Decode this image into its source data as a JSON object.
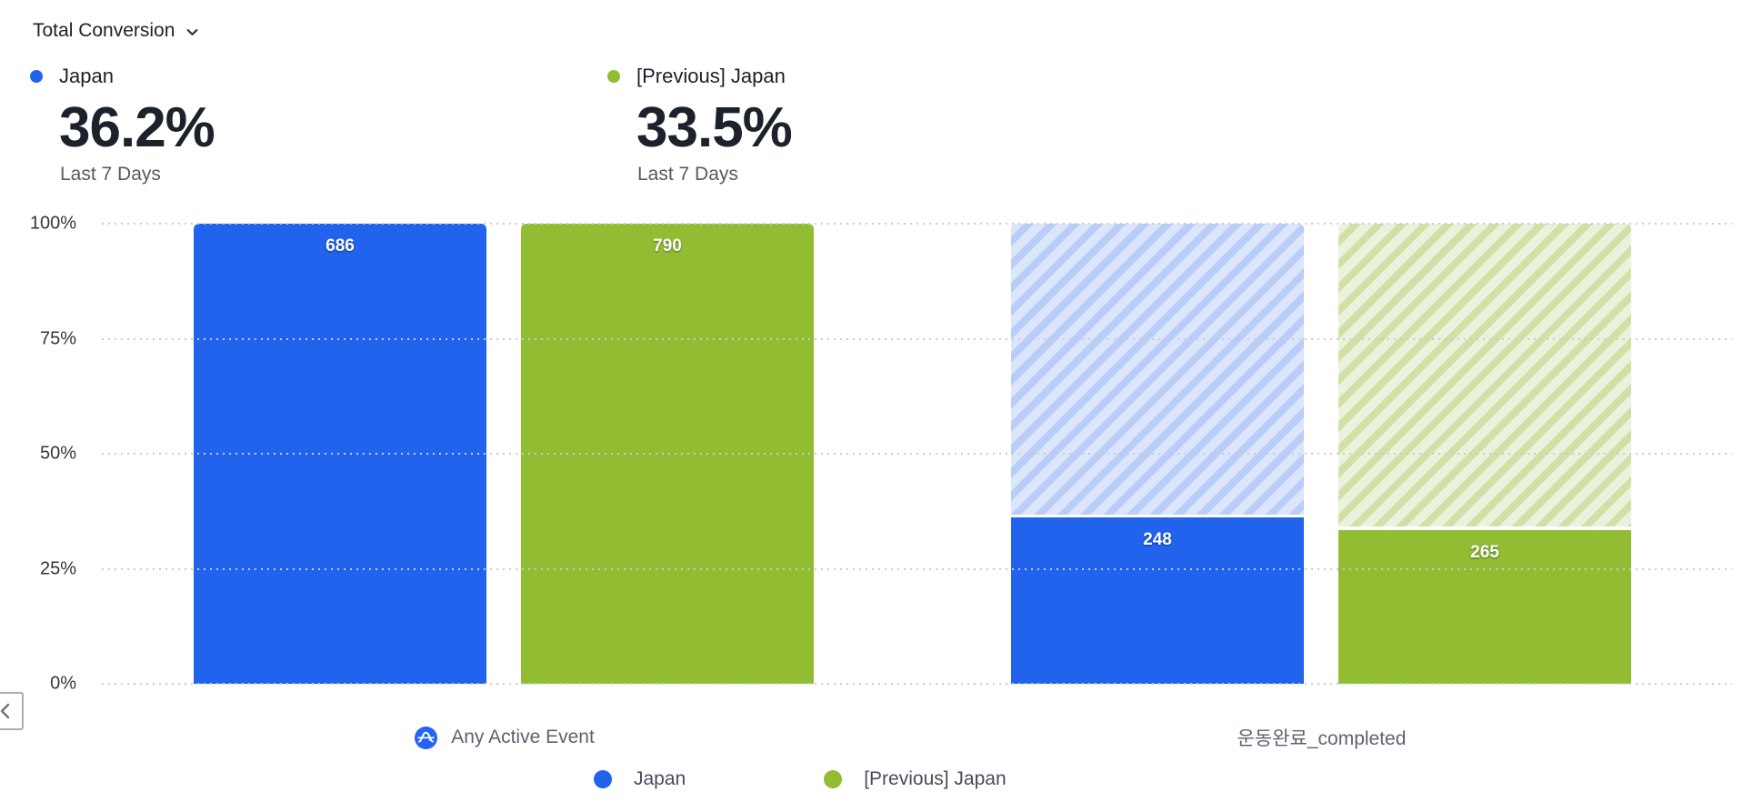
{
  "view_controls": {
    "metric_selector_label": "Total Conversion",
    "metric_selector_icon": "chevron-down"
  },
  "summary_metrics": [
    {
      "name": "Japan",
      "value": "36.2%",
      "period": "Last 7 Days",
      "color": "#2263ee"
    },
    {
      "name": "[Previous] Japan",
      "value": "33.5%",
      "period": "Last 7 Days",
      "color": "#92bd33"
    }
  ],
  "chart_data": {
    "type": "bar",
    "subtype": "funnel_conversion_comparison",
    "categories": [
      "Any Active Event",
      "운동완료_completed"
    ],
    "series": [
      {
        "name": "Japan",
        "color": "#2263ee",
        "hatch_bg": "#dbe5fb",
        "hatch_stripe": "#b8cdf8",
        "values": [
          686,
          248
        ],
        "percents": [
          100,
          36.2
        ]
      },
      {
        "name": "[Previous] Japan",
        "color": "#92bd33",
        "hatch_bg": "#ebf2dc",
        "hatch_stripe": "#cfe1a7",
        "values": [
          790,
          265
        ],
        "percents": [
          100,
          33.5
        ]
      }
    ],
    "y_ticks": [
      "100%",
      "75%",
      "50%",
      "25%",
      "0%"
    ],
    "ylim": [
      0,
      100
    ],
    "grid": "horizontal-dotted",
    "legend_position": "bottom",
    "hatch_meaning": "unconverted remainder"
  },
  "x_axis_labels": [
    {
      "icon": "any-active-event",
      "text": "Any Active Event"
    },
    {
      "icon": null,
      "text": "운동완료_completed"
    }
  ],
  "legend": [
    {
      "label": "Japan",
      "color": "#2263ee"
    },
    {
      "label": "[Previous] Japan",
      "color": "#92bd33"
    }
  ],
  "pagination": {
    "prev_icon": "chevron-left"
  }
}
